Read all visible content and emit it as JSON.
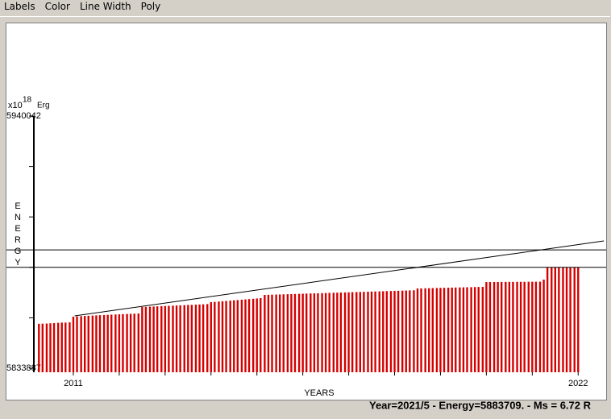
{
  "menu": [
    "Labels",
    "Color",
    "Line Width",
    "Poly"
  ],
  "chart_data": {
    "type": "bar",
    "y_unit_prefix": "x10",
    "y_unit_exponent": "18",
    "y_unit": "Erg",
    "ylabel": "ENERGY",
    "xlabel": "YEARS",
    "color": "#d40000",
    "x": [
      2010.25,
      2010.33,
      2010.42,
      2010.5,
      2010.58,
      2010.67,
      2010.75,
      2010.83,
      2010.92,
      2011,
      2011.08,
      2011.17,
      2011.25,
      2011.33,
      2011.42,
      2011.5,
      2011.58,
      2011.67,
      2011.75,
      2011.83,
      2011.92,
      2012,
      2012.08,
      2012.17,
      2012.25,
      2012.33,
      2012.42,
      2012.5,
      2012.58,
      2012.67,
      2012.75,
      2012.83,
      2012.92,
      2013,
      2013.08,
      2013.17,
      2013.25,
      2013.33,
      2013.42,
      2013.5,
      2013.58,
      2013.67,
      2013.75,
      2013.83,
      2013.92,
      2014,
      2014.08,
      2014.17,
      2014.25,
      2014.33,
      2014.42,
      2014.5,
      2014.58,
      2014.67,
      2014.75,
      2014.83,
      2014.92,
      2015,
      2015.08,
      2015.17,
      2015.25,
      2015.33,
      2015.42,
      2015.5,
      2015.58,
      2015.67,
      2015.75,
      2015.83,
      2015.92,
      2016,
      2016.08,
      2016.17,
      2016.25,
      2016.33,
      2016.42,
      2016.5,
      2016.58,
      2016.67,
      2016.75,
      2016.83,
      2016.92,
      2017,
      2017.08,
      2017.17,
      2017.25,
      2017.33,
      2017.42,
      2017.5,
      2017.58,
      2017.67,
      2017.75,
      2017.83,
      2017.92,
      2018,
      2018.08,
      2018.17,
      2018.25,
      2018.33,
      2018.42,
      2018.5,
      2018.58,
      2018.67,
      2018.75,
      2018.83,
      2018.92,
      2019,
      2019.08,
      2019.17,
      2019.25,
      2019.33,
      2019.42,
      2019.5,
      2019.58,
      2019.67,
      2019.75,
      2019.83,
      2019.92,
      2020,
      2020.08,
      2020.17,
      2020.25,
      2020.33,
      2020.42,
      2020.5,
      2020.58,
      2020.67,
      2020.75,
      2020.83,
      2020.92,
      2021,
      2021.08,
      2021.17,
      2021.25,
      2021.33,
      2021.42,
      2021.5,
      2021.58,
      2021.67,
      2021.75,
      2021.83,
      2021.92,
      2022
    ],
    "values": [
      5852600,
      5852650,
      5852700,
      5852800,
      5852900,
      5853000,
      5853100,
      5853100,
      5853200,
      5855589,
      5855700,
      5855800,
      5855900,
      5855980,
      5856060,
      5856140,
      5856220,
      5856300,
      5856370,
      5856440,
      5856510,
      5856580,
      5856650,
      5856720,
      5856790,
      5856860,
      5856940,
      5859659,
      5859740,
      5859810,
      5859880,
      5859950,
      5860020,
      5860090,
      5860160,
      5860230,
      5860300,
      5860370,
      5860440,
      5860510,
      5860580,
      5860650,
      5860720,
      5860800,
      5860900,
      5861693,
      5861820,
      5861950,
      5862080,
      5862210,
      5862340,
      5862470,
      5862600,
      5862730,
      5862860,
      5862990,
      5863120,
      5863250,
      5863389,
      5864745,
      5864800,
      5864850,
      5864900,
      5864950,
      5865000,
      5865050,
      5865100,
      5865150,
      5865200,
      5865250,
      5865300,
      5865350,
      5865400,
      5865450,
      5865500,
      5865550,
      5865600,
      5865650,
      5865700,
      5865750,
      5865800,
      5865850,
      5865900,
      5865950,
      5866000,
      5866050,
      5866100,
      5866150,
      5866200,
      5866250,
      5866300,
      5866350,
      5866400,
      5866450,
      5866500,
      5866550,
      5866600,
      5866650,
      5866700,
      5867458,
      5867500,
      5867540,
      5867580,
      5867620,
      5867660,
      5867700,
      5867740,
      5867780,
      5867820,
      5867860,
      5867900,
      5867940,
      5867980,
      5868020,
      5868060,
      5868100,
      5868136,
      5870170,
      5870170,
      5870200,
      5870200,
      5870200,
      5870230,
      5870230,
      5870230,
      5870260,
      5870260,
      5870260,
      5870290,
      5870290,
      5870300,
      5870320,
      5871187,
      5876273,
      5876273,
      5876273,
      5876273,
      5876273,
      5876273,
      5876273,
      5876273,
      5876273
    ],
    "xlim": [
      2010.14,
      2022.61
    ],
    "ylim": [
      5833887,
      5940042
    ],
    "yticks": [
      5833887,
      {
        "value": 5855118,
        "label": null
      },
      {
        "value": 5876349,
        "label": null
      },
      {
        "value": 5897580,
        "label": null
      },
      {
        "value": 5918811,
        "label": null
      },
      5940042
    ],
    "xticks": [
      2011,
      {
        "value": 2012,
        "label": null
      },
      {
        "value": 2013,
        "label": null
      },
      {
        "value": 2014,
        "label": null
      },
      {
        "value": 2015,
        "label": null
      },
      {
        "value": 2016,
        "label": null
      },
      {
        "value": 2017,
        "label": null
      },
      {
        "value": 2018,
        "label": null
      },
      {
        "value": 2019,
        "label": null
      },
      {
        "value": 2020,
        "label": null
      },
      {
        "value": 2021,
        "label": null
      },
      2022
    ],
    "trend": {
      "x": [
        2011.03,
        2022.56
      ],
      "values": [
        5855929,
        5887464
      ]
    },
    "reference_lines": [
      5883709,
      5876349
    ]
  },
  "status": "Year=2021/5 - Energy=5883709. - Ms = 6.72 R"
}
